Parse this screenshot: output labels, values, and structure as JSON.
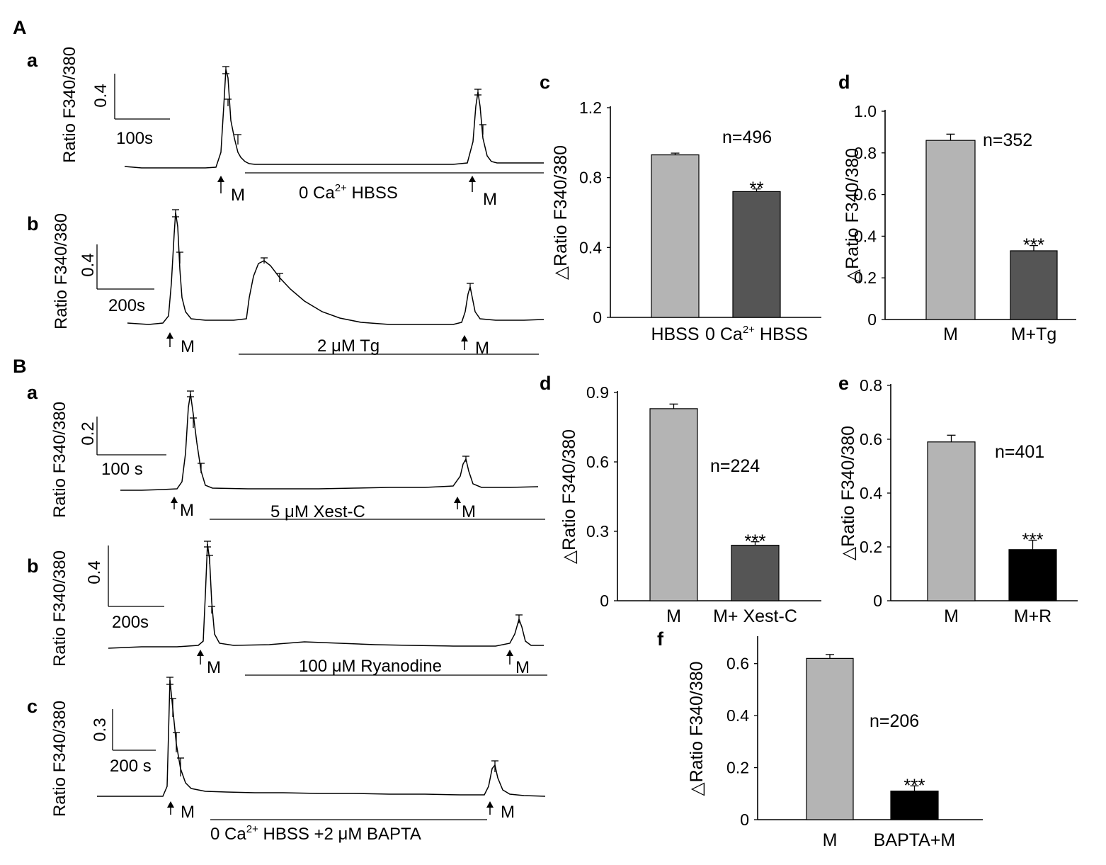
{
  "figure": {
    "sections": [
      "A",
      "B"
    ],
    "labels": {
      "Aa": "a",
      "Ab": "b",
      "Ac": "c",
      "Ad": "d",
      "Ba": "a",
      "Bb": "b",
      "Bc": "c",
      "Bd": "d",
      "Be": "e",
      "Bf": "f"
    }
  },
  "colors": {
    "light_bar": "#b4b4b4",
    "dark_bar": "#555555",
    "black_bar": "#000000",
    "ink": "#000000"
  },
  "traces": [
    {
      "id": "Aa",
      "ylabel": "Ratio F340/380",
      "scale_y_label": "0.4",
      "scale_x_label": "100s",
      "arrow_labels": [
        "M",
        "M"
      ],
      "treatment": {
        "pre": "0 Ca",
        "sup": "2+",
        "post": " HBSS"
      }
    },
    {
      "id": "Ab",
      "ylabel": "Ratio F340/380",
      "scale_y_label": "0.4",
      "scale_x_label": "200s",
      "arrow_labels": [
        "M",
        "M"
      ],
      "treatment": {
        "pre": "2 μM Tg",
        "sup": "",
        "post": ""
      }
    },
    {
      "id": "Ba",
      "ylabel": "Ratio F340/380",
      "scale_y_label": "0.2",
      "scale_x_label": "100 s",
      "arrow_labels": [
        "M",
        "M"
      ],
      "treatment": {
        "pre": "5 μM Xest-C",
        "sup": "",
        "post": ""
      }
    },
    {
      "id": "Bb",
      "ylabel": "Ratio F340/380",
      "scale_y_label": "0.4",
      "scale_x_label": "200s",
      "arrow_labels": [
        "M",
        "M"
      ],
      "treatment": {
        "pre": "100 μM Ryanodine",
        "sup": "",
        "post": ""
      }
    },
    {
      "id": "Bc",
      "ylabel": "Ratio F340/380",
      "scale_y_label": "0.3",
      "scale_x_label": "200 s",
      "arrow_labels": [
        "M",
        "M"
      ],
      "treatment": {
        "pre": "0 Ca",
        "sup": "2+",
        "post": " HBSS +2 μM BAPTA"
      }
    }
  ],
  "chart_data": [
    {
      "id": "Ac",
      "type": "bar",
      "ylabel": "△Ratio F340/380",
      "ylim": [
        0,
        1.2
      ],
      "yticks": [
        0,
        0.4,
        0.8,
        1.2
      ],
      "ytick_labels": [
        "0",
        "0.4",
        "0.8",
        "1.2"
      ],
      "categories": [
        {
          "pre": "HBSS",
          "sup": "",
          "post": ""
        },
        {
          "pre": "0 Ca",
          "sup": "2+",
          "post": " HBSS"
        }
      ],
      "values": [
        0.93,
        0.72
      ],
      "errors": [
        0.01,
        0.015
      ],
      "colors": [
        "#b4b4b4",
        "#555555"
      ],
      "significance": [
        "",
        "**"
      ],
      "n_label": "n=496"
    },
    {
      "id": "Ad",
      "type": "bar",
      "ylabel": "△Ratio F340/380",
      "ylim": [
        0,
        1.0
      ],
      "yticks": [
        0,
        0.2,
        0.4,
        0.6,
        0.8,
        1.0
      ],
      "ytick_labels": [
        "0",
        "0.2",
        "0.4",
        "0.6",
        "0.8",
        "1.0"
      ],
      "categories": [
        {
          "pre": "M",
          "sup": "",
          "post": ""
        },
        {
          "pre": "M+Tg",
          "sup": "",
          "post": ""
        }
      ],
      "values": [
        0.86,
        0.33
      ],
      "errors": [
        0.03,
        0.025
      ],
      "colors": [
        "#b4b4b4",
        "#555555"
      ],
      "significance": [
        "",
        "***"
      ],
      "n_label": "n=352"
    },
    {
      "id": "Bd",
      "type": "bar",
      "ylabel": "△Ratio F340/380",
      "ylim": [
        0,
        0.9
      ],
      "yticks": [
        0,
        0.3,
        0.6,
        0.9
      ],
      "ytick_labels": [
        "0",
        "0.3",
        "0.6",
        "0.9"
      ],
      "categories": [
        {
          "pre": "M",
          "sup": "",
          "post": ""
        },
        {
          "pre": "M+ Xest-C",
          "sup": "",
          "post": ""
        }
      ],
      "values": [
        0.83,
        0.24
      ],
      "errors": [
        0.02,
        0.015
      ],
      "colors": [
        "#b4b4b4",
        "#555555"
      ],
      "significance": [
        "",
        "***"
      ],
      "n_label": "n=224"
    },
    {
      "id": "Be",
      "type": "bar",
      "ylabel": "△Ratio F340/380",
      "ylim": [
        0,
        0.8
      ],
      "yticks": [
        0,
        0.2,
        0.4,
        0.6,
        0.8
      ],
      "ytick_labels": [
        "0",
        "0.2",
        "0.4",
        "0.6",
        "0.8"
      ],
      "categories": [
        {
          "pre": "M",
          "sup": "",
          "post": ""
        },
        {
          "pre": "M+R",
          "sup": "",
          "post": ""
        }
      ],
      "values": [
        0.59,
        0.19
      ],
      "errors": [
        0.025,
        0.035
      ],
      "colors": [
        "#b4b4b4",
        "#000000"
      ],
      "significance": [
        "",
        "***"
      ],
      "n_label": "n=401"
    },
    {
      "id": "Bf",
      "type": "bar",
      "ylabel": "△Ratio F340/380",
      "ylim": [
        0,
        0.7
      ],
      "yticks": [
        0,
        0.2,
        0.4,
        0.6
      ],
      "ytick_labels": [
        "0",
        "0.2",
        "0.4",
        "0.6"
      ],
      "categories": [
        {
          "pre": "M",
          "sup": "",
          "post": ""
        },
        {
          "pre": "BAPTA+M",
          "sup": "",
          "post": ""
        }
      ],
      "values": [
        0.62,
        0.11
      ],
      "errors": [
        0.015,
        0.02
      ],
      "colors": [
        "#b4b4b4",
        "#000000"
      ],
      "significance": [
        "",
        "***"
      ],
      "n_label": "n=206"
    }
  ]
}
